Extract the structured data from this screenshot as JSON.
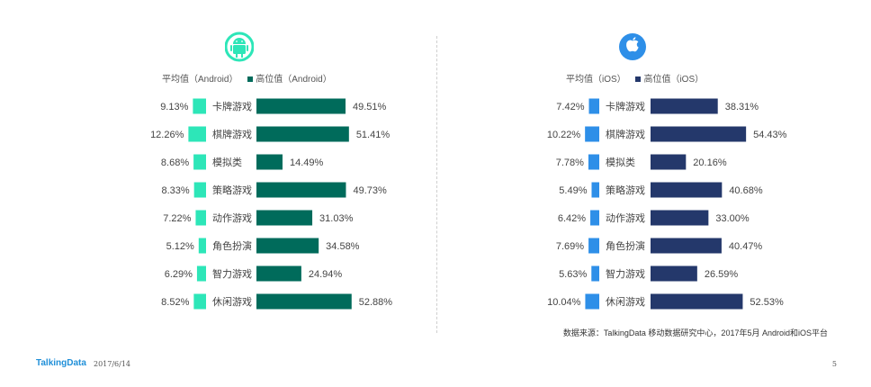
{
  "chart_data": [
    {
      "type": "bar",
      "platform": "Android",
      "categories": [
        "卡牌游戏",
        "棋牌游戏",
        "模拟类",
        "策略游戏",
        "动作游戏",
        "角色扮演",
        "智力游戏",
        "休闲游戏"
      ],
      "series": [
        {
          "name": "平均值（Android）",
          "values": [
            9.13,
            12.26,
            8.68,
            8.33,
            7.22,
            5.12,
            6.29,
            8.52
          ],
          "labels": [
            "9.13%",
            "12.26%",
            "8.68%",
            "8.33%",
            "7.22%",
            "5.12%",
            "6.29%",
            "8.52%"
          ],
          "color": "#2de6b8"
        },
        {
          "name": "高位值（Android）",
          "values": [
            49.51,
            51.41,
            14.49,
            49.73,
            31.03,
            34.58,
            24.94,
            52.88
          ],
          "labels": [
            "49.51%",
            "51.41%",
            "14.49%",
            "49.73%",
            "31.03%",
            "34.58%",
            "24.94%",
            "52.88%"
          ],
          "color": "#006b5b"
        }
      ],
      "legend": {
        "avg_label": "平均值（Android）",
        "high_label": "高位值（Android）",
        "placement": "top"
      }
    },
    {
      "type": "bar",
      "platform": "iOS",
      "categories": [
        "卡牌游戏",
        "棋牌游戏",
        "模拟类",
        "策略游戏",
        "动作游戏",
        "角色扮演",
        "智力游戏",
        "休闲游戏"
      ],
      "series": [
        {
          "name": "平均值（iOS）",
          "values": [
            7.42,
            10.22,
            7.78,
            5.49,
            6.42,
            7.69,
            5.63,
            10.04
          ],
          "labels": [
            "7.42%",
            "10.22%",
            "7.78%",
            "5.49%",
            "6.42%",
            "7.69%",
            "5.63%",
            "10.04%"
          ],
          "color": "#2e8fe8"
        },
        {
          "name": "高位值（iOS）",
          "values": [
            38.31,
            54.43,
            20.16,
            40.68,
            33.0,
            40.47,
            26.59,
            52.53
          ],
          "labels": [
            "38.31%",
            "54.43%",
            "20.16%",
            "40.68%",
            "33.00%",
            "40.47%",
            "26.59%",
            "52.53%"
          ],
          "color": "#24386b"
        }
      ],
      "legend": {
        "avg_label": "平均值（iOS）",
        "high_label": "高位值（iOS）",
        "placement": "top"
      }
    }
  ],
  "icons": {
    "android": "android-icon",
    "ios": "apple-icon"
  },
  "source": "数据来源：TalkingData 移动数据研究中心，2017年5月 Android和iOS平台",
  "footer": {
    "logo": "TalkingData",
    "date": "2017/6/14",
    "page": "5"
  }
}
